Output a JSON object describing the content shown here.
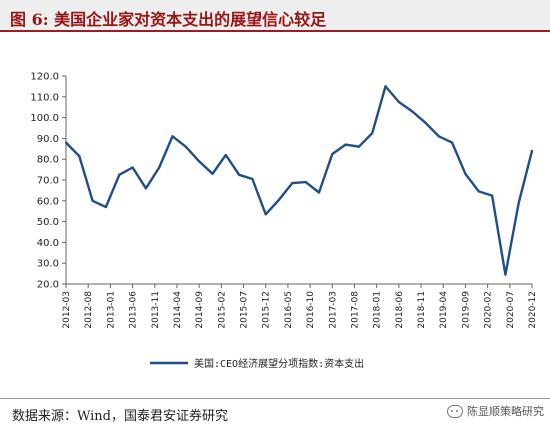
{
  "header": {
    "title": "图 6:  美国企业家对资本支出的展望信心较足"
  },
  "footer": {
    "source": "数据来源：Wind，国泰君安证券研究",
    "watermark": "陈显顺策略研究",
    "watermark_icon": "wechat-icon"
  },
  "colors": {
    "line": "#1f4e8c",
    "title": "#9a1414",
    "rule": "#a01c1c"
  },
  "chart_data": {
    "type": "line",
    "title": "",
    "xlabel": "",
    "ylabel": "",
    "ylim": [
      20,
      120
    ],
    "yticks": [
      "20.0",
      "30.0",
      "40.0",
      "50.0",
      "60.0",
      "70.0",
      "80.0",
      "90.0",
      "100.0",
      "110.0",
      "120.0"
    ],
    "grid": false,
    "legend": "bottom",
    "x_tick_labels": [
      "2012-03",
      "2012-08",
      "2013-01",
      "2013-06",
      "2013-11",
      "2014-04",
      "2014-09",
      "2015-02",
      "2015-07",
      "2015-12",
      "2016-05",
      "2016-10",
      "2017-03",
      "2017-08",
      "2018-01",
      "2018-06",
      "2018-11",
      "2019-04",
      "2019-09",
      "2020-02",
      "2020-07",
      "2020-12"
    ],
    "x": [
      "2012-03",
      "2012-06",
      "2012-09",
      "2012-12",
      "2013-03",
      "2013-06",
      "2013-09",
      "2013-12",
      "2014-03",
      "2014-06",
      "2014-09",
      "2014-12",
      "2015-03",
      "2015-06",
      "2015-09",
      "2015-12",
      "2016-03",
      "2016-06",
      "2016-09",
      "2016-12",
      "2017-03",
      "2017-06",
      "2017-09",
      "2017-12",
      "2018-03",
      "2018-06",
      "2018-09",
      "2018-12",
      "2019-03",
      "2019-06",
      "2019-09",
      "2019-12",
      "2020-03",
      "2020-06",
      "2020-09",
      "2020-12"
    ],
    "series": [
      {
        "name": "美国:CEO经济展望分项指数:资本支出",
        "values": [
          88,
          81.5,
          60,
          57,
          72.5,
          76,
          66,
          76,
          91,
          86,
          79,
          73,
          82,
          72.5,
          70.5,
          53.5,
          60.5,
          68.5,
          69,
          64,
          82.5,
          87,
          86,
          92.5,
          115,
          107.5,
          103,
          97.5,
          91,
          88,
          73,
          64.5,
          62.5,
          24.5,
          59,
          84
        ]
      }
    ]
  }
}
